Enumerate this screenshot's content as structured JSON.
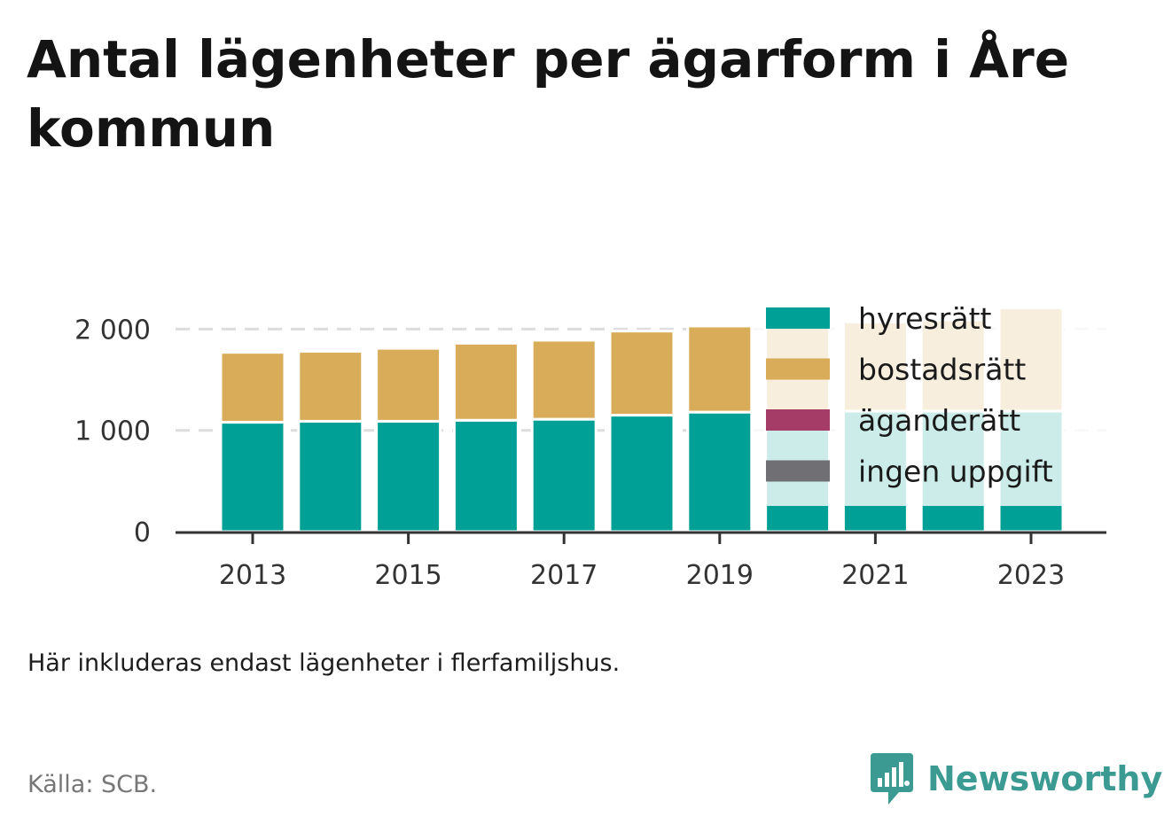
{
  "title": "Antal lägenheter per ägarform i Åre kommun",
  "note": "Här inkluderas endast lägenheter i flerfamiljshus.",
  "source": "Källa: SCB.",
  "brand": {
    "name": "Newsworthy",
    "icon": "newsworthy-logo-icon",
    "color": "#3b9a92"
  },
  "chart_data": {
    "type": "bar",
    "stacked": true,
    "categories": [
      "2013",
      "2014",
      "2015",
      "2016",
      "2017",
      "2018",
      "2019",
      "2020",
      "2021",
      "2022",
      "2023"
    ],
    "x_tick_labels": [
      "2013",
      "2015",
      "2017",
      "2019",
      "2021",
      "2023"
    ],
    "y_tick_labels": [
      "0",
      "1 000",
      "2 000"
    ],
    "y_ticks": [
      0,
      1000,
      2000
    ],
    "ylim": [
      0,
      2200
    ],
    "grid": true,
    "legend_position": "top-right",
    "series": [
      {
        "name": "hyresrätt",
        "color": "#00a096",
        "values": [
          1080,
          1090,
          1090,
          1100,
          1110,
          1150,
          1180,
          1180,
          1190,
          1190,
          1190
        ]
      },
      {
        "name": "bostadsrätt",
        "color": "#d9ac59",
        "values": [
          690,
          690,
          720,
          760,
          780,
          830,
          850,
          870,
          880,
          900,
          1020
        ]
      },
      {
        "name": "äganderätt",
        "color": "#a53c67",
        "values": [
          0,
          0,
          0,
          0,
          0,
          0,
          0,
          0,
          0,
          0,
          0
        ]
      },
      {
        "name": "ingen uppgift",
        "color": "#6f6f74",
        "values": [
          0,
          0,
          0,
          0,
          0,
          0,
          0,
          0,
          0,
          0,
          0
        ]
      }
    ]
  }
}
